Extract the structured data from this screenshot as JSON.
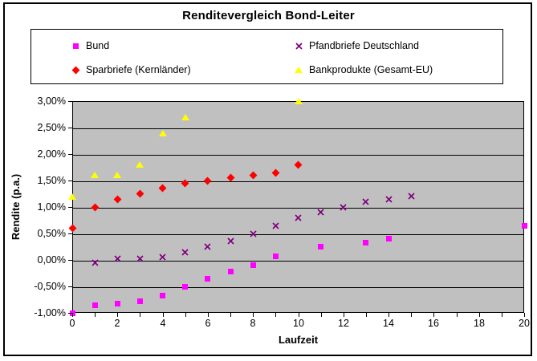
{
  "chart_data": {
    "type": "scatter",
    "title": "Renditevergleich Bond-Leiter",
    "xlabel": "Laufzeit",
    "ylabel": "Rendite (p.a.)",
    "xlim": [
      0,
      20
    ],
    "ylim": [
      -1.0,
      3.0
    ],
    "x_major_ticks": [
      0,
      2,
      4,
      6,
      8,
      10,
      12,
      14,
      16,
      18,
      20
    ],
    "x_minor_tick_step": 1,
    "y_ticks": [
      {
        "value": 3.0,
        "label": "3,00%"
      },
      {
        "value": 2.5,
        "label": "2,50%"
      },
      {
        "value": 2.0,
        "label": "2,00%"
      },
      {
        "value": 1.5,
        "label": "1,50%"
      },
      {
        "value": 1.0,
        "label": "1,00%"
      },
      {
        "value": 0.5,
        "label": "0,50%"
      },
      {
        "value": 0.0,
        "label": "0,00%"
      },
      {
        "value": -0.5,
        "label": "-0,50%"
      },
      {
        "value": -1.0,
        "label": "-1,00%"
      }
    ],
    "grid": "horizontal",
    "plot_bg_color": "#C0C0C0",
    "gridline_color": "#000000",
    "legend_position": "top",
    "series": [
      {
        "name": "Bund",
        "marker": "square",
        "color": "#FF00FF",
        "points": [
          [
            0,
            -1.0
          ],
          [
            1,
            -0.85
          ],
          [
            2,
            -0.83
          ],
          [
            3,
            -0.78
          ],
          [
            4,
            -0.68
          ],
          [
            5,
            -0.5
          ],
          [
            6,
            -0.35
          ],
          [
            7,
            -0.22
          ],
          [
            8,
            -0.1
          ],
          [
            9,
            0.07
          ],
          [
            11,
            0.25
          ],
          [
            13,
            0.33
          ],
          [
            14,
            0.4
          ],
          [
            20,
            0.65
          ]
        ]
      },
      {
        "name": "Pfandbriefe Deutschland",
        "marker": "x",
        "color": "#800080",
        "points": [
          [
            1,
            -0.05
          ],
          [
            2,
            0.02
          ],
          [
            3,
            0.03
          ],
          [
            4,
            0.06
          ],
          [
            5,
            0.15
          ],
          [
            6,
            0.25
          ],
          [
            7,
            0.35
          ],
          [
            8,
            0.5
          ],
          [
            9,
            0.65
          ],
          [
            10,
            0.8
          ],
          [
            11,
            0.9
          ],
          [
            12,
            1.0
          ],
          [
            13,
            1.1
          ],
          [
            14,
            1.15
          ],
          [
            15,
            1.2
          ]
        ]
      },
      {
        "name": "Sparbriefe (Kernländer)",
        "marker": "diamond",
        "color": "#FF0000",
        "points": [
          [
            0,
            0.6
          ],
          [
            1,
            1.0
          ],
          [
            2,
            1.15
          ],
          [
            3,
            1.25
          ],
          [
            4,
            1.35
          ],
          [
            5,
            1.45
          ],
          [
            6,
            1.5
          ],
          [
            7,
            1.55
          ],
          [
            8,
            1.6
          ],
          [
            9,
            1.65
          ],
          [
            10,
            1.8
          ]
        ]
      },
      {
        "name": "Bankprodukte (Gesamt-EU)",
        "marker": "triangle",
        "color": "#FFFF00",
        "points": [
          [
            0,
            1.2
          ],
          [
            1,
            1.6
          ],
          [
            2,
            1.6
          ],
          [
            3,
            1.8
          ],
          [
            4,
            2.4
          ],
          [
            5,
            2.7
          ],
          [
            10,
            3.0
          ]
        ]
      }
    ]
  }
}
